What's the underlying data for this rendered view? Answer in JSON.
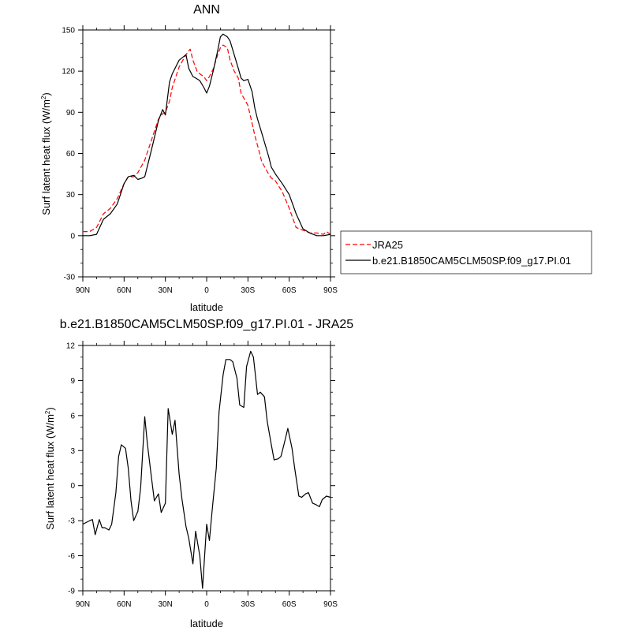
{
  "chart_data": [
    {
      "type": "line",
      "title": "ANN",
      "xlabel": "latitude",
      "ylabel": "Surf latent heat flux (W/m",
      "ylabel_sup": "2",
      "ylabel_close": ")",
      "xlim": [
        90,
        -90
      ],
      "ylim": [
        -30,
        150
      ],
      "x_ticks": [
        90,
        60,
        30,
        0,
        -30,
        -60,
        -90
      ],
      "x_tick_labels": [
        "90N",
        "60N",
        "30N",
        "0",
        "30S",
        "60S",
        "90S"
      ],
      "y_ticks": [
        -30,
        0,
        30,
        60,
        90,
        120,
        150
      ],
      "y_tick_labels": [
        "-30",
        "0",
        "30",
        "60",
        "90",
        "120",
        "150"
      ],
      "legend_position": "right",
      "series": [
        {
          "name": "JRA25",
          "color": "#ff0000",
          "dash": "dashed",
          "x": [
            90,
            85,
            80,
            75,
            70,
            65,
            60,
            57,
            53,
            50,
            45,
            40,
            35,
            32,
            30,
            27,
            25,
            20,
            15,
            12,
            10,
            7,
            5,
            2,
            0,
            -2,
            -5,
            -8,
            -10,
            -12,
            -15,
            -17,
            -20,
            -23,
            -25,
            -30,
            -33,
            -35,
            -38,
            -40,
            -45,
            -47,
            -50,
            -55,
            -60,
            -65,
            -70,
            -75,
            -80,
            -85,
            -87,
            -90
          ],
          "y": [
            3,
            3,
            6,
            16,
            20,
            27,
            38,
            43,
            43,
            46,
            55,
            70,
            85,
            89,
            90,
            98,
            108,
            123,
            132,
            136,
            128,
            120,
            118,
            116,
            113,
            116,
            122,
            132,
            137,
            139,
            137,
            128,
            120,
            115,
            104,
            95,
            82,
            73,
            62,
            54,
            45,
            42,
            40,
            32,
            20,
            6,
            4,
            2,
            2,
            1,
            3,
            1
          ]
        },
        {
          "name": "b.e21.B1850CAM5CLM50SP.f09_g17.PI.01",
          "color": "#000000",
          "dash": "solid",
          "x": [
            90,
            85,
            80,
            75,
            70,
            65,
            60,
            57,
            53,
            50,
            47,
            45,
            40,
            35,
            32,
            30,
            27,
            25,
            20,
            15,
            13,
            10,
            8,
            5,
            2,
            0,
            -2,
            -5,
            -8,
            -10,
            -12,
            -15,
            -17,
            -20,
            -23,
            -25,
            -27,
            -30,
            -33,
            -35,
            -37,
            -40,
            -45,
            -47,
            -50,
            -55,
            -60,
            -65,
            -70,
            -75,
            -80,
            -85,
            -90
          ],
          "y": [
            0,
            0,
            1,
            12,
            16,
            23,
            38,
            43,
            44,
            41,
            42,
            43,
            63,
            84,
            92,
            88,
            112,
            118,
            128,
            132,
            122,
            116,
            115,
            113,
            108,
            104,
            109,
            121,
            135,
            145,
            147,
            145,
            142,
            132,
            122,
            115,
            113,
            114,
            105,
            93,
            85,
            75,
            58,
            50,
            45,
            38,
            30,
            16,
            5,
            2,
            0,
            0,
            1
          ]
        }
      ]
    },
    {
      "type": "line",
      "title": "b.e21.B1850CAM5CLM50SP.f09_g17.PI.01 - JRA25",
      "xlabel": "latitude",
      "ylabel": "Surf latent heat flux (W/m",
      "ylabel_sup": "2",
      "ylabel_close": ")",
      "xlim": [
        90,
        -90
      ],
      "ylim": [
        -9,
        12
      ],
      "x_ticks": [
        90,
        60,
        30,
        0,
        -30,
        -60,
        -90
      ],
      "x_tick_labels": [
        "90N",
        "60N",
        "30N",
        "0",
        "30S",
        "60S",
        "90S"
      ],
      "y_ticks": [
        -9,
        -6,
        -3,
        0,
        3,
        6,
        9,
        12
      ],
      "y_tick_labels": [
        "-9",
        "-6",
        "-3",
        "0",
        "3",
        "6",
        "9",
        "12"
      ],
      "series": [
        {
          "color": "#000000",
          "dash": "solid",
          "x": [
            90,
            85,
            83,
            81,
            78,
            76,
            74,
            71,
            69,
            66,
            64,
            62,
            59,
            57,
            55,
            53,
            50,
            48,
            45,
            43,
            40,
            38,
            35,
            33,
            30,
            28,
            25,
            23,
            20,
            18,
            15,
            13,
            10,
            8,
            5,
            3,
            0,
            -2,
            -4,
            -7,
            -9,
            -12,
            -14,
            -17,
            -19,
            -22,
            -24,
            -27,
            -29,
            -32,
            -34,
            -37,
            -39,
            -42,
            -44,
            -47,
            -49,
            -52,
            -54,
            -57,
            -59,
            -62,
            -64,
            -67,
            -69,
            -72,
            -74,
            -77,
            -79,
            -82,
            -84,
            -87,
            -90
          ],
          "y": [
            -3.3,
            -3.0,
            -2.9,
            -4.2,
            -2.9,
            -3.6,
            -3.6,
            -3.8,
            -3.3,
            -0.6,
            2.5,
            3.5,
            3.2,
            1.5,
            -1.3,
            -3.0,
            -2.2,
            -0.2,
            5.9,
            3.5,
            0.6,
            -1.3,
            -0.7,
            -2.3,
            -1.5,
            6.6,
            4.4,
            5.6,
            1.0,
            -1.1,
            -3.5,
            -4.5,
            -6.7,
            -3.9,
            -6.0,
            -8.8,
            -3.3,
            -4.7,
            -2.1,
            1.5,
            6.3,
            9.5,
            10.8,
            10.8,
            10.6,
            9.2,
            6.9,
            6.7,
            10.2,
            11.5,
            11.0,
            7.8,
            8.0,
            7.6,
            5.5,
            3.5,
            2.2,
            2.3,
            2.5,
            3.9,
            4.9,
            3.2,
            1.5,
            -0.9,
            -1.0,
            -0.7,
            -0.6,
            -1.5,
            -1.6,
            -1.8,
            -1.2,
            -0.9,
            -1.0
          ]
        }
      ]
    }
  ]
}
